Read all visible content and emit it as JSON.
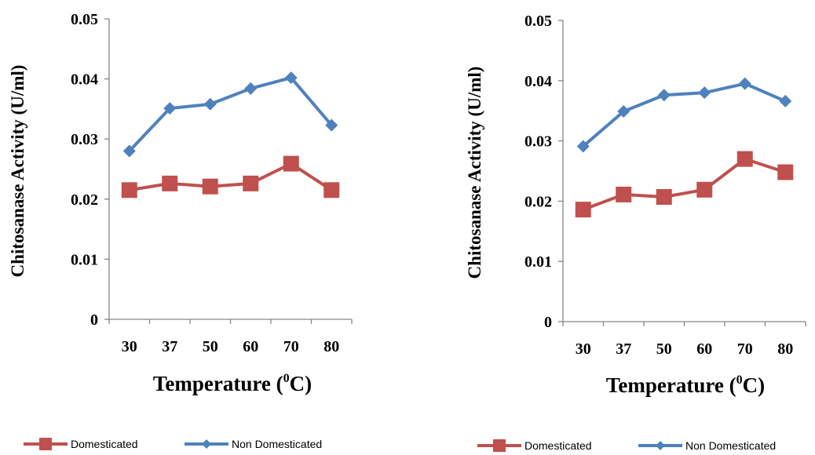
{
  "colors": {
    "domesticated": "#C0504D",
    "non_domesticated": "#4F81BD"
  },
  "chart_data": [
    {
      "type": "line",
      "categories": [
        "30",
        "37",
        "50",
        "60",
        "70",
        "80"
      ],
      "ylabel": "Chitosanase Activity (U/ml)",
      "xlabel": {
        "prefix": "Temperature (",
        "sup": "0",
        "suffix": "C)"
      },
      "ylim": [
        0,
        0.05
      ],
      "yticks": [
        "0",
        "0.01",
        "0.02",
        "0.03",
        "0.04",
        "0.05"
      ],
      "grid": false,
      "legend_position": "bottom",
      "series": [
        {
          "name": "Domesticated",
          "marker": "square",
          "values": [
            0.0215,
            0.0226,
            0.0221,
            0.0226,
            0.0259,
            0.0215
          ]
        },
        {
          "name": "Non Domesticated",
          "marker": "diamond",
          "values": [
            0.028,
            0.0351,
            0.0358,
            0.0384,
            0.0402,
            0.0323
          ]
        }
      ]
    },
    {
      "type": "line",
      "categories": [
        "30",
        "37",
        "50",
        "60",
        "70",
        "80"
      ],
      "ylabel": "Chitosanase Activity (U/ml)",
      "xlabel": {
        "prefix": "Temperature (",
        "sup": "0",
        "suffix": "C)"
      },
      "ylim": [
        0,
        0.05
      ],
      "yticks": [
        "0",
        "0.01",
        "0.02",
        "0.03",
        "0.04",
        "0.05"
      ],
      "grid": false,
      "legend_position": "bottom",
      "series": [
        {
          "name": "Domesticated",
          "marker": "square",
          "values": [
            0.0186,
            0.0211,
            0.0207,
            0.0219,
            0.027,
            0.0248
          ]
        },
        {
          "name": "Non Domesticated",
          "marker": "diamond",
          "values": [
            0.0291,
            0.0349,
            0.0376,
            0.038,
            0.0395,
            0.0366
          ]
        }
      ]
    }
  ]
}
